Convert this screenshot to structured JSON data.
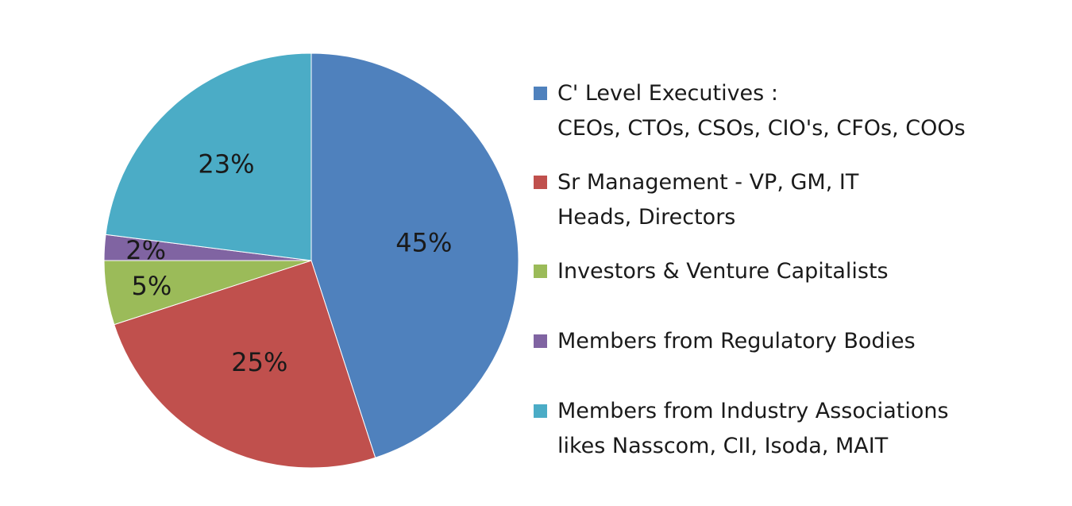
{
  "chart_data": {
    "type": "pie",
    "title": "",
    "legend_position": "right",
    "slices": [
      {
        "label_lines": [
          "C' Level Executives :",
          "CEOs, CTOs, CSOs, CIO's, CFOs, COOs"
        ],
        "value": 45,
        "display": "45%",
        "color": "#4f81bd"
      },
      {
        "label_lines": [
          "Sr Management - VP, GM, IT",
          "Heads, Directors"
        ],
        "value": 25,
        "display": "25%",
        "color": "#c0504d"
      },
      {
        "label_lines": [
          "Investors & Venture Capitalists"
        ],
        "value": 5,
        "display": "5%",
        "color": "#9bbb59"
      },
      {
        "label_lines": [
          "Members from Regulatory Bodies"
        ],
        "value": 2,
        "display": "2%",
        "color": "#8064a2"
      },
      {
        "label_lines": [
          "Members from Industry Associations",
          "likes Nasscom, CII, Isoda, MAIT"
        ],
        "value": 23,
        "display": "23%",
        "color": "#4bacc6"
      }
    ]
  }
}
